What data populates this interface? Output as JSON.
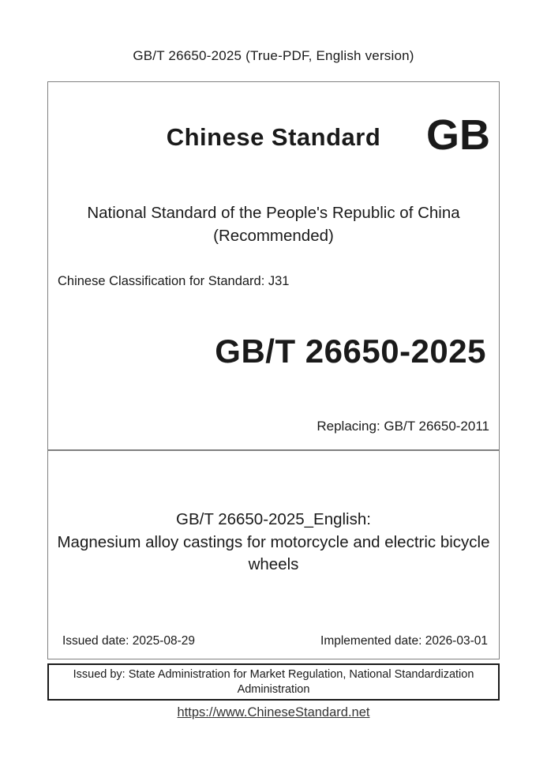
{
  "page": {
    "header": "GB/T 26650-2025 (True-PDF, English version)",
    "footer_link": "https://www.ChineseStandard.net"
  },
  "cover": {
    "brand_title": "Chinese Standard",
    "brand_code": "GB",
    "national_line1": "National Standard of the People's Republic of China",
    "national_line2": "(Recommended)",
    "classification": "Chinese Classification for Standard: J31",
    "standard_number": "GB/T 26650-2025",
    "replacing": "Replacing: GB/T 26650-2011"
  },
  "detail": {
    "english_heading": "GB/T 26650-2025_English:",
    "english_title": "Magnesium alloy castings for motorcycle and electric bicycle wheels",
    "issued_date": "Issued date: 2025-08-29",
    "implemented_date": "Implemented date: 2026-03-01"
  },
  "issuer": {
    "text": "Issued by: State Administration for Market Regulation, National Standardization Administration"
  },
  "colors": {
    "section_border": "#808080",
    "issuer_border": "#1a1a1a",
    "text": "#1a1a1a",
    "link": "#333333"
  }
}
